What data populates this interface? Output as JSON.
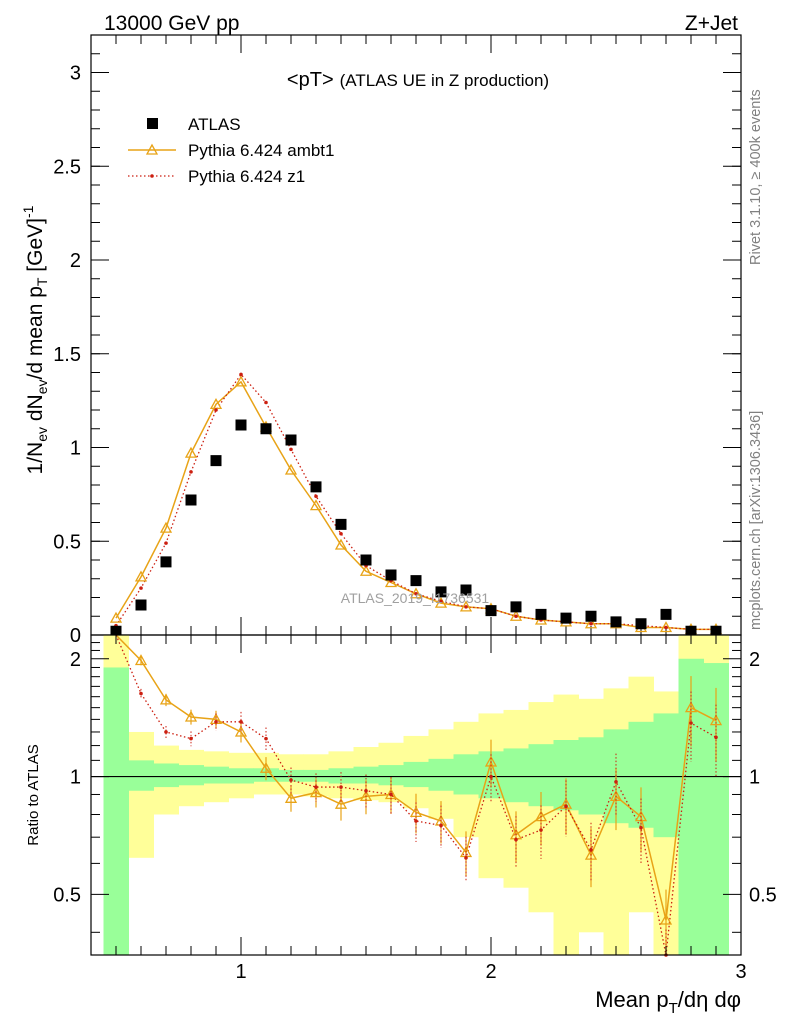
{
  "header": {
    "energy_label": "13000 GeV pp",
    "process_label": "Z+Jet",
    "plot_title": "<pT>",
    "plot_subtitle": "(ATLAS UE in Z production)",
    "analysis_watermark": "ATLAS_2019_I1736531"
  },
  "side_labels": {
    "rivet": "Rivet 3.1.10, ≥ 400k events",
    "mcplots": "mcplots.cern.ch [arXiv:1306.3436]"
  },
  "colors": {
    "data": "#000000",
    "ambt1": "#e8a317",
    "z1": "#cc1f10",
    "band_inner": "#99ff99",
    "band_outer": "#ffff99"
  },
  "chart_data": [
    {
      "type": "scatter",
      "panel": "main",
      "title": "<pT> (ATLAS UE in Z production)",
      "ylabel": "1/N_ev dN_ev/d mean p_T [GeV]^-1",
      "xlim": [
        0.4,
        3.0
      ],
      "ylim": [
        0,
        3.2
      ],
      "yticks": [
        0,
        0.5,
        1,
        1.5,
        2,
        2.5,
        3
      ],
      "legend_position": "top-left",
      "x": [
        0.5,
        0.6,
        0.7,
        0.8,
        0.9,
        1.0,
        1.1,
        1.2,
        1.3,
        1.4,
        1.5,
        1.6,
        1.7,
        1.8,
        1.9,
        2.0,
        2.1,
        2.2,
        2.3,
        2.4,
        2.5,
        2.6,
        2.7,
        2.8,
        2.9
      ],
      "series": [
        {
          "name": "ATLAS",
          "style": "square-markers",
          "values": [
            0.02,
            0.16,
            0.39,
            0.72,
            0.93,
            1.12,
            1.1,
            1.04,
            0.79,
            0.59,
            0.4,
            0.32,
            0.29,
            0.23,
            0.24,
            0.13,
            0.15,
            0.11,
            0.09,
            0.1,
            0.07,
            0.06,
            0.11,
            0.02,
            0.02
          ]
        },
        {
          "name": "Pythia 6.424 ambt1",
          "style": "solid-line-triangles",
          "values": [
            0.09,
            0.31,
            0.57,
            0.97,
            1.23,
            1.35,
            1.11,
            0.88,
            0.69,
            0.48,
            0.34,
            0.28,
            0.22,
            0.17,
            0.15,
            0.14,
            0.1,
            0.08,
            0.07,
            0.06,
            0.06,
            0.04,
            0.04,
            0.03,
            0.03
          ]
        },
        {
          "name": "Pythia 6.424 z1",
          "style": "dotted-line-dots",
          "values": [
            0.05,
            0.25,
            0.49,
            0.87,
            1.2,
            1.39,
            1.24,
            0.99,
            0.74,
            0.54,
            0.37,
            0.29,
            0.22,
            0.18,
            0.15,
            0.14,
            0.1,
            0.08,
            0.07,
            0.06,
            0.06,
            0.05,
            0.04,
            0.03,
            0.03
          ]
        }
      ]
    },
    {
      "type": "line",
      "panel": "ratio",
      "ylabel": "Ratio to ATLAS",
      "xlabel": "Mean p_T/dη dφ",
      "xlim": [
        0.4,
        3.0
      ],
      "ylim": [
        0.35,
        2.3
      ],
      "yticks": [
        0.5,
        1,
        2
      ],
      "xticks": [
        1,
        2,
        3
      ],
      "reference_line": 1,
      "x": [
        0.5,
        0.6,
        0.7,
        0.8,
        0.9,
        1.0,
        1.1,
        1.2,
        1.3,
        1.4,
        1.5,
        1.6,
        1.7,
        1.8,
        1.9,
        2.0,
        2.1,
        2.2,
        2.3,
        2.4,
        2.5,
        2.6,
        2.7,
        2.8,
        2.9
      ],
      "bands": {
        "inner_low": [
          0.35,
          0.92,
          0.94,
          0.95,
          0.96,
          0.96,
          0.97,
          0.97,
          0.97,
          0.96,
          0.96,
          0.95,
          0.94,
          0.92,
          0.9,
          0.88,
          0.86,
          0.84,
          0.82,
          0.8,
          0.76,
          0.74,
          0.7,
          0.35,
          0.35
        ],
        "inner_high": [
          1.9,
          1.1,
          1.08,
          1.07,
          1.06,
          1.05,
          1.05,
          1.04,
          1.04,
          1.05,
          1.06,
          1.07,
          1.09,
          1.11,
          1.14,
          1.16,
          1.18,
          1.21,
          1.24,
          1.26,
          1.32,
          1.38,
          1.45,
          2.0,
          1.95
        ],
        "outer_low": [
          0.35,
          0.62,
          0.8,
          0.84,
          0.86,
          0.88,
          0.9,
          0.9,
          0.89,
          0.88,
          0.87,
          0.86,
          0.83,
          0.78,
          0.7,
          0.55,
          0.52,
          0.45,
          0.35,
          0.4,
          0.35,
          0.45,
          0.35,
          0.35,
          0.35
        ],
        "outer_high": [
          2.3,
          1.3,
          1.2,
          1.17,
          1.16,
          1.15,
          1.15,
          1.14,
          1.14,
          1.16,
          1.19,
          1.22,
          1.27,
          1.32,
          1.38,
          1.45,
          1.48,
          1.55,
          1.62,
          1.58,
          1.68,
          1.8,
          1.65,
          2.3,
          2.3
        ]
      },
      "series": [
        {
          "name": "Pythia 6.424 ambt1",
          "values": [
            2.45,
            1.98,
            1.57,
            1.42,
            1.4,
            1.3,
            1.05,
            0.88,
            0.91,
            0.85,
            0.89,
            0.9,
            0.81,
            0.77,
            0.64,
            1.09,
            0.71,
            0.79,
            0.85,
            0.63,
            0.89,
            0.79,
            0.43,
            1.5,
            1.39
          ]
        },
        {
          "name": "Pythia 6.424 z1",
          "values": [
            2.45,
            1.63,
            1.3,
            1.25,
            1.38,
            1.38,
            1.25,
            0.98,
            0.94,
            0.94,
            0.92,
            0.9,
            0.77,
            0.75,
            0.62,
            1.0,
            0.69,
            0.73,
            0.84,
            0.65,
            0.97,
            0.74,
            0.34,
            1.37,
            1.26
          ]
        }
      ]
    }
  ]
}
